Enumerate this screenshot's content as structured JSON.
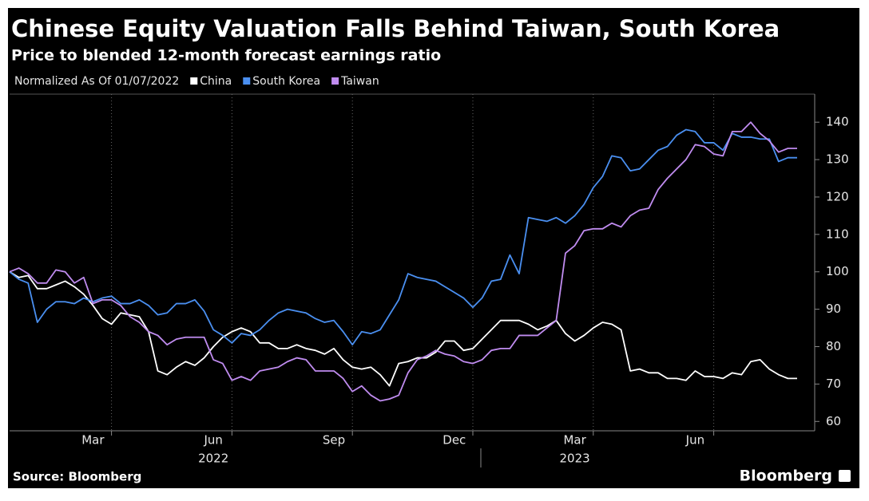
{
  "chart_data": {
    "type": "line",
    "title": "Chinese Equity Valuation Falls Behind Taiwan, South Korea",
    "subtitle": "Price to blended 12-month forecast earnings ratio",
    "legend_title": "Normalized As Of 01/07/2022",
    "source": "Source: Bloomberg",
    "brand": "Bloomberg",
    "categories": [
      null,
      null,
      null,
      null,
      null,
      null,
      null,
      null,
      null,
      "Mar",
      null,
      null,
      null,
      null,
      null,
      null,
      null,
      null,
      null,
      null,
      null,
      null,
      "Jun",
      null,
      null,
      null,
      null,
      null,
      null,
      null,
      null,
      null,
      null,
      null,
      null,
      "Sep",
      null,
      null,
      null,
      null,
      null,
      null,
      null,
      null,
      null,
      null,
      null,
      null,
      "Dec",
      null,
      null,
      null,
      null,
      null,
      null,
      null,
      null,
      null,
      null,
      null,
      null,
      "Mar",
      null,
      null,
      null,
      null,
      null,
      null,
      null,
      null,
      null,
      null,
      null,
      null,
      "Jun",
      null,
      null,
      null,
      null,
      null,
      null,
      null,
      null,
      null,
      null,
      null
    ],
    "x_groups": [
      "2022",
      "2023"
    ],
    "series": [
      {
        "name": "China",
        "color": "#ffffff",
        "values": [
          100,
          98.5,
          99,
          95.5,
          95.5,
          96.5,
          97.5,
          96,
          94,
          91,
          87.5,
          86,
          89,
          88.5,
          88,
          84,
          73.5,
          72.5,
          74.5,
          76,
          75,
          77,
          80,
          82.5,
          84,
          85,
          84,
          81,
          81,
          79.5,
          79.5,
          80.5,
          79.5,
          79,
          78,
          79.5,
          76.5,
          74.5,
          74,
          74.5,
          72.5,
          69.5,
          75.5,
          76,
          77,
          77,
          78.5,
          81.5,
          81.5,
          79,
          79.5,
          82,
          84.5,
          87,
          87,
          87,
          86,
          84.5,
          85.5,
          87,
          83.5,
          81.5,
          83,
          85,
          86.5,
          86,
          84.5,
          73.5,
          74,
          73,
          73,
          71.5,
          71.5,
          71,
          73.5,
          72,
          72,
          71.5,
          73,
          72.5,
          76,
          76.5,
          74,
          72.5,
          71.5,
          71.5
        ]
      },
      {
        "name": "South Korea",
        "color": "#4a8ff0",
        "values": [
          100,
          98,
          97,
          86.5,
          90,
          92,
          92,
          91.5,
          93,
          92,
          93,
          93.5,
          91.5,
          91.5,
          92.5,
          91,
          88.5,
          89,
          91.5,
          91.5,
          92.5,
          89.5,
          84.5,
          83,
          81,
          83.5,
          83,
          84.5,
          87,
          89,
          90,
          89.5,
          89,
          87.5,
          86.5,
          87,
          84,
          80.5,
          84,
          83.5,
          84.5,
          88.5,
          92.5,
          99.5,
          98.5,
          98,
          97.5,
          96,
          94.5,
          93,
          90.5,
          93,
          97.5,
          98,
          104.5,
          99.5,
          114.5,
          114,
          113.5,
          114.5,
          113,
          115,
          118,
          122.5,
          125.5,
          131,
          130.5,
          127,
          127.5,
          130,
          132.5,
          133.5,
          136.5,
          138,
          137.5,
          134.5,
          134.5,
          132.5,
          137,
          136,
          136,
          135.5,
          135.5,
          129.5,
          130.5,
          130.5
        ]
      },
      {
        "name": "Taiwan",
        "color": "#c08cf0",
        "values": [
          100,
          101,
          99.5,
          97,
          97,
          100.5,
          100,
          97,
          98.5,
          91.5,
          92.5,
          92.5,
          91,
          88,
          86.5,
          84,
          83,
          80.5,
          82,
          82.5,
          82.5,
          82.5,
          76.5,
          75.5,
          71,
          72,
          71,
          73.5,
          74,
          74.5,
          76,
          77,
          76.5,
          73.5,
          73.5,
          73.5,
          71.5,
          68,
          69.5,
          67,
          65.5,
          66,
          67,
          73,
          76.5,
          77.5,
          79,
          78,
          77.5,
          76,
          75.5,
          76.5,
          79,
          79.5,
          79.5,
          83,
          83,
          83,
          85,
          87,
          105,
          107,
          111,
          111.5,
          111.5,
          113,
          112,
          115,
          116.5,
          117,
          122,
          125,
          127.5,
          130,
          134,
          133.5,
          131.5,
          131,
          137.5,
          137.5,
          140,
          137,
          135,
          132,
          133,
          133
        ]
      }
    ],
    "ylim": [
      57.5,
      147.5
    ],
    "yticks": [
      60,
      70,
      80,
      90,
      100,
      110,
      120,
      130,
      140
    ]
  }
}
